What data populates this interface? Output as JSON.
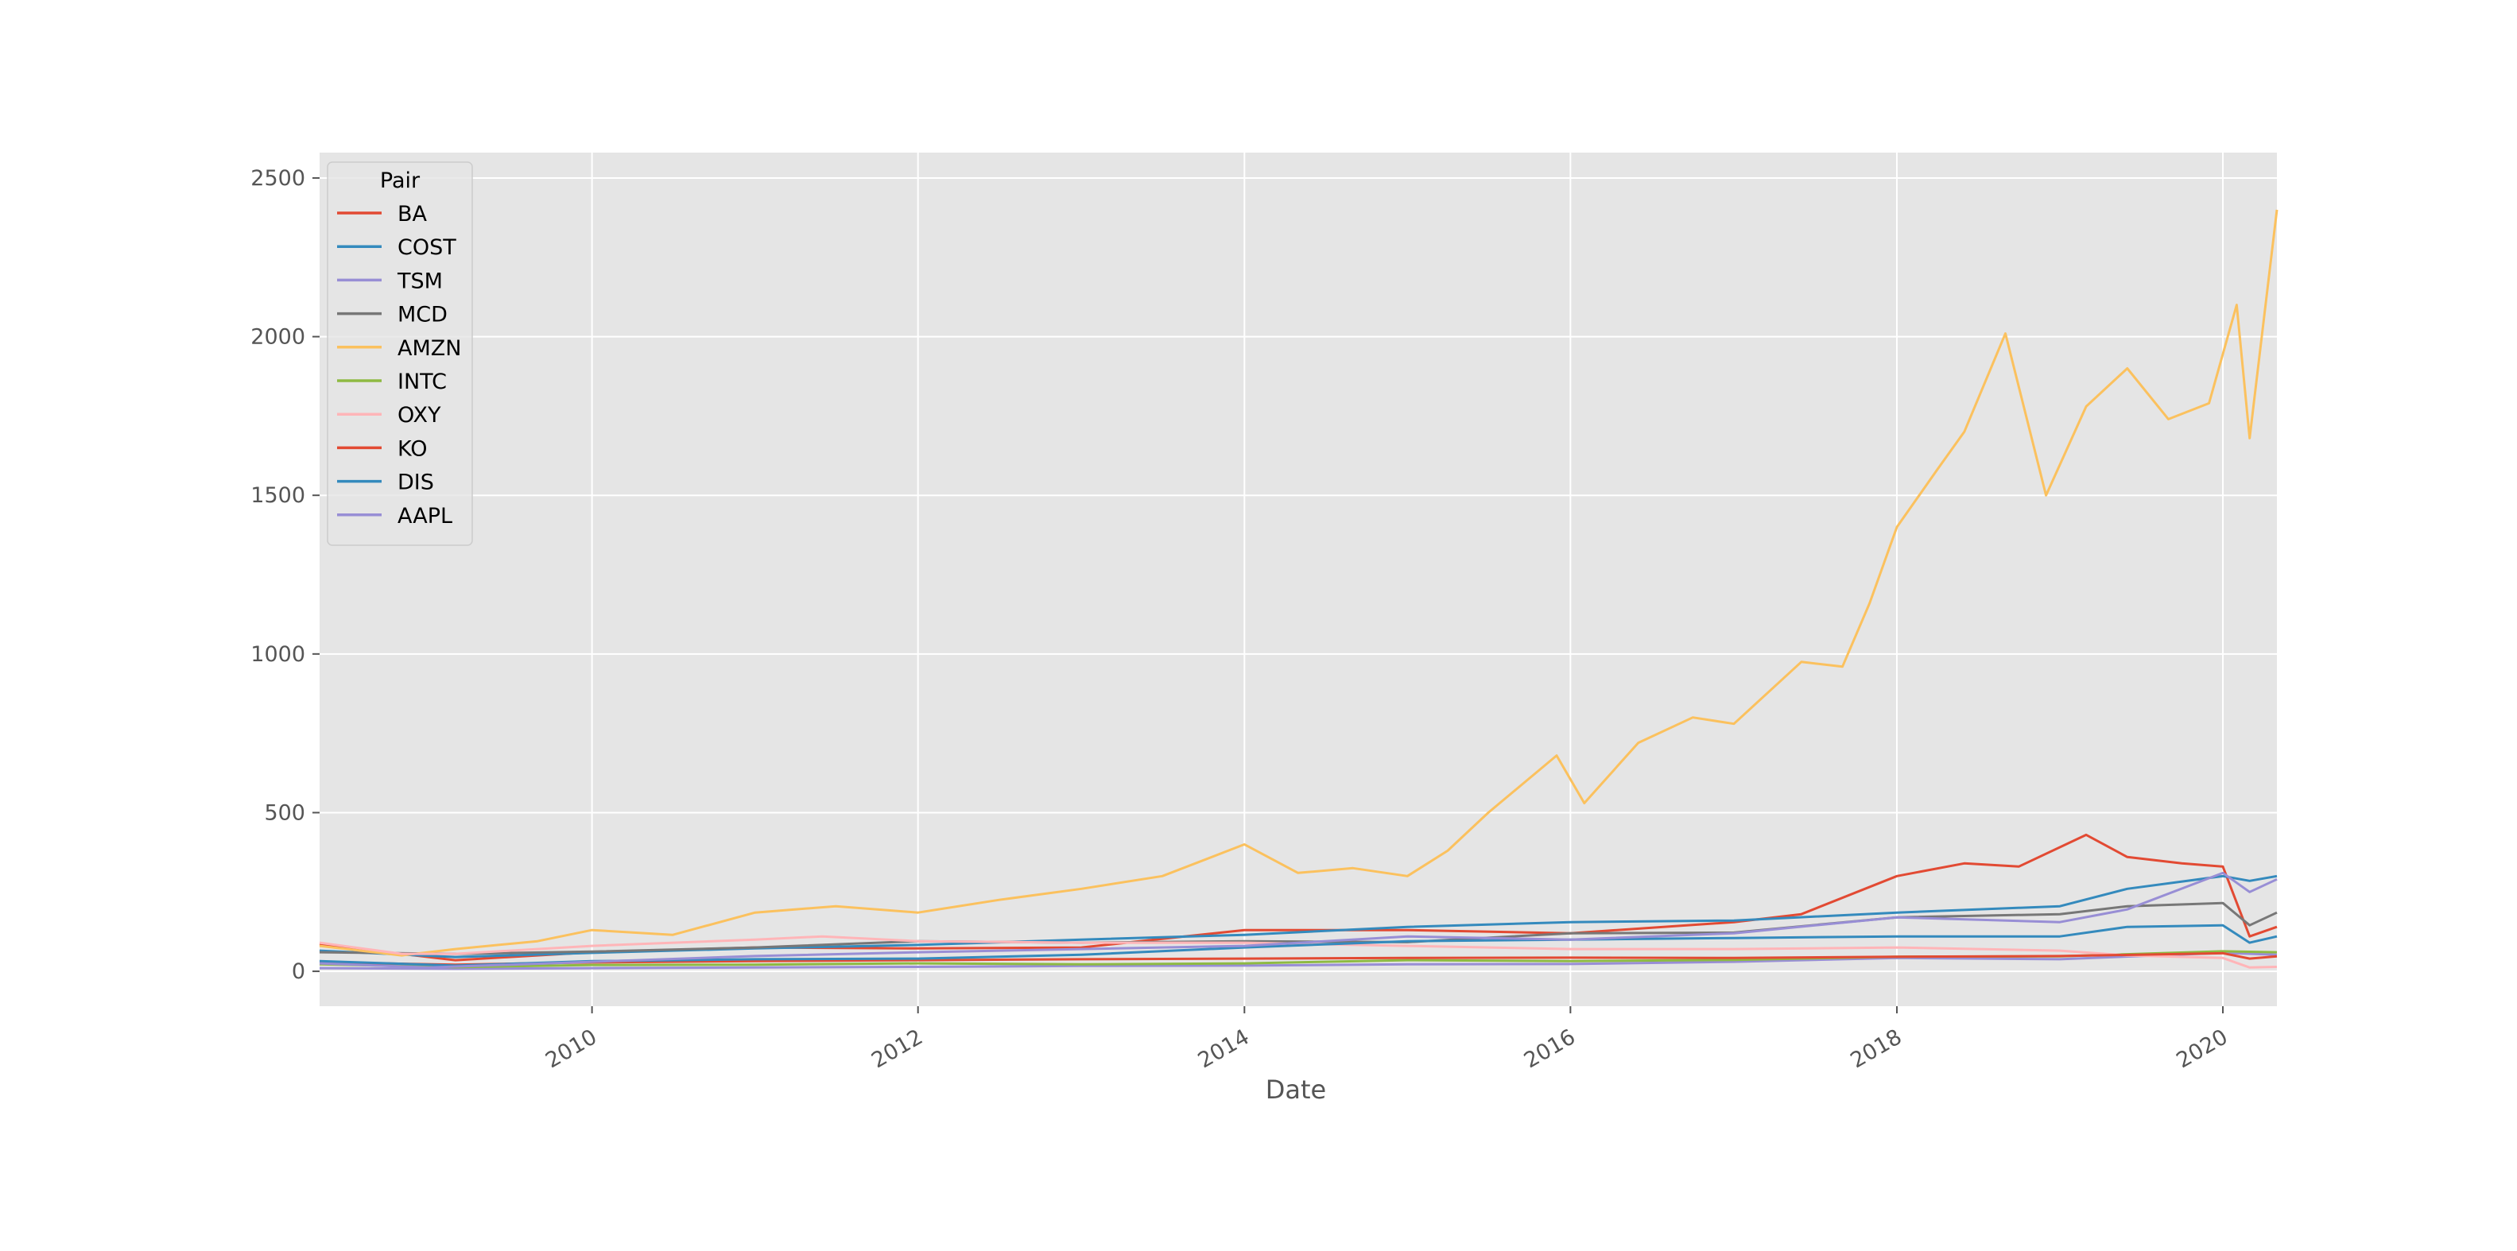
{
  "chart_data": {
    "type": "line",
    "xlabel": "Date",
    "ylabel": "",
    "xlim": [
      "2008-05-01",
      "2020-05-01"
    ],
    "ylim": [
      -110,
      2580
    ],
    "x_ticks": [
      "2010",
      "2012",
      "2014",
      "2016",
      "2018",
      "2020"
    ],
    "y_ticks": [
      "0",
      "500",
      "1000",
      "1500",
      "2000",
      "2500"
    ],
    "grid": true,
    "legend": {
      "title": "Pair",
      "position": "top-left"
    },
    "series": [
      {
        "name": "BA",
        "color": "#E24A33",
        "x": [
          "2008-05",
          "2009-03",
          "2010-01",
          "2011-01",
          "2012-01",
          "2013-01",
          "2014-01",
          "2015-01",
          "2016-01",
          "2017-01",
          "2017-06",
          "2018-01",
          "2018-06",
          "2018-10",
          "2019-03",
          "2019-06",
          "2019-10",
          "2020-01",
          "2020-03",
          "2020-05"
        ],
        "y": [
          85,
          35,
          60,
          75,
          72,
          75,
          130,
          130,
          120,
          155,
          180,
          300,
          340,
          330,
          430,
          360,
          340,
          330,
          110,
          140
        ]
      },
      {
        "name": "COST",
        "color": "#348ABD",
        "x": [
          "2008-05",
          "2009-03",
          "2010-01",
          "2011-01",
          "2012-01",
          "2013-01",
          "2014-01",
          "2015-01",
          "2016-01",
          "2017-01",
          "2018-01",
          "2019-01",
          "2019-06",
          "2020-01",
          "2020-03",
          "2020-05"
        ],
        "y": [
          65,
          45,
          58,
          72,
          83,
          100,
          115,
          140,
          155,
          160,
          185,
          205,
          260,
          300,
          285,
          300
        ]
      },
      {
        "name": "TSM",
        "color": "#988ED5",
        "x": [
          "2008-05",
          "2009-03",
          "2010-01",
          "2011-01",
          "2012-01",
          "2013-01",
          "2014-01",
          "2015-01",
          "2016-01",
          "2017-01",
          "2018-01",
          "2019-01",
          "2020-01",
          "2020-05"
        ],
        "y": [
          10,
          8,
          10,
          12,
          14,
          17,
          18,
          22,
          23,
          30,
          42,
          38,
          58,
          52
        ]
      },
      {
        "name": "MCD",
        "color": "#777777",
        "x": [
          "2008-05",
          "2009-03",
          "2010-01",
          "2011-01",
          "2012-01",
          "2013-01",
          "2014-01",
          "2015-01",
          "2016-01",
          "2017-01",
          "2018-01",
          "2019-01",
          "2019-06",
          "2020-01",
          "2020-03",
          "2020-05"
        ],
        "y": [
          60,
          55,
          62,
          75,
          95,
          90,
          95,
          92,
          120,
          122,
          170,
          180,
          205,
          215,
          145,
          185
        ]
      },
      {
        "name": "AMZN",
        "color": "#FBC15E",
        "x": [
          "2008-05",
          "2008-11",
          "2009-03",
          "2009-09",
          "2010-01",
          "2010-07",
          "2011-01",
          "2011-07",
          "2012-01",
          "2012-07",
          "2013-01",
          "2013-07",
          "2014-01",
          "2014-05",
          "2014-09",
          "2015-01",
          "2015-04",
          "2015-07",
          "2015-12",
          "2016-02",
          "2016-06",
          "2016-10",
          "2017-01",
          "2017-06",
          "2017-09",
          "2017-11",
          "2018-01",
          "2018-04",
          "2018-06",
          "2018-09",
          "2018-12",
          "2019-03",
          "2019-06",
          "2019-09",
          "2019-12",
          "2020-02",
          "2020-03",
          "2020-05"
        ],
        "y": [
          80,
          50,
          70,
          95,
          130,
          115,
          185,
          205,
          185,
          225,
          260,
          300,
          400,
          310,
          325,
          300,
          380,
          500,
          680,
          530,
          720,
          800,
          780,
          975,
          960,
          1160,
          1400,
          1580,
          1700,
          2010,
          1500,
          1780,
          1900,
          1740,
          1790,
          2100,
          1680,
          2400
        ]
      },
      {
        "name": "INTC",
        "color": "#8EBA42",
        "x": [
          "2008-05",
          "2009-03",
          "2010-01",
          "2011-01",
          "2012-01",
          "2013-01",
          "2014-01",
          "2015-01",
          "2016-01",
          "2017-01",
          "2018-01",
          "2019-01",
          "2020-01",
          "2020-05"
        ],
        "y": [
          22,
          13,
          20,
          21,
          25,
          22,
          25,
          35,
          32,
          36,
          46,
          47,
          63,
          60
        ]
      },
      {
        "name": "OXY",
        "color": "#FFB5B8",
        "x": [
          "2008-05",
          "2008-11",
          "2009-03",
          "2010-01",
          "2011-01",
          "2011-06",
          "2012-01",
          "2013-01",
          "2014-01",
          "2015-01",
          "2016-01",
          "2017-01",
          "2018-01",
          "2019-01",
          "2019-06",
          "2020-01",
          "2020-03",
          "2020-05"
        ],
        "y": [
          90,
          55,
          55,
          80,
          100,
          110,
          95,
          90,
          90,
          80,
          70,
          70,
          75,
          65,
          50,
          42,
          12,
          14
        ]
      },
      {
        "name": "KO",
        "color": "#E24A33",
        "x": [
          "2008-05",
          "2009-03",
          "2010-01",
          "2011-01",
          "2012-01",
          "2013-01",
          "2014-01",
          "2015-01",
          "2016-01",
          "2017-01",
          "2018-01",
          "2019-01",
          "2020-01",
          "2020-03",
          "2020-05"
        ],
        "y": [
          28,
          21,
          28,
          32,
          35,
          38,
          40,
          42,
          43,
          42,
          46,
          48,
          57,
          40,
          47
        ]
      },
      {
        "name": "DIS",
        "color": "#348ABD",
        "x": [
          "2008-05",
          "2009-03",
          "2010-01",
          "2011-01",
          "2012-01",
          "2013-01",
          "2014-01",
          "2015-01",
          "2016-01",
          "2017-01",
          "2018-01",
          "2019-01",
          "2019-06",
          "2020-01",
          "2020-03",
          "2020-05"
        ],
        "y": [
          32,
          18,
          32,
          38,
          40,
          52,
          75,
          95,
          100,
          105,
          110,
          110,
          140,
          145,
          90,
          110
        ]
      },
      {
        "name": "AAPL",
        "color": "#988ED5",
        "x": [
          "2008-05",
          "2009-01",
          "2010-01",
          "2011-01",
          "2012-01",
          "2013-01",
          "2014-01",
          "2015-01",
          "2016-01",
          "2017-01",
          "2018-01",
          "2019-01",
          "2019-06",
          "2020-01",
          "2020-03",
          "2020-05"
        ],
        "y": [
          25,
          12,
          30,
          48,
          60,
          70,
          80,
          110,
          100,
          120,
          170,
          155,
          195,
          310,
          250,
          290
        ]
      }
    ]
  }
}
